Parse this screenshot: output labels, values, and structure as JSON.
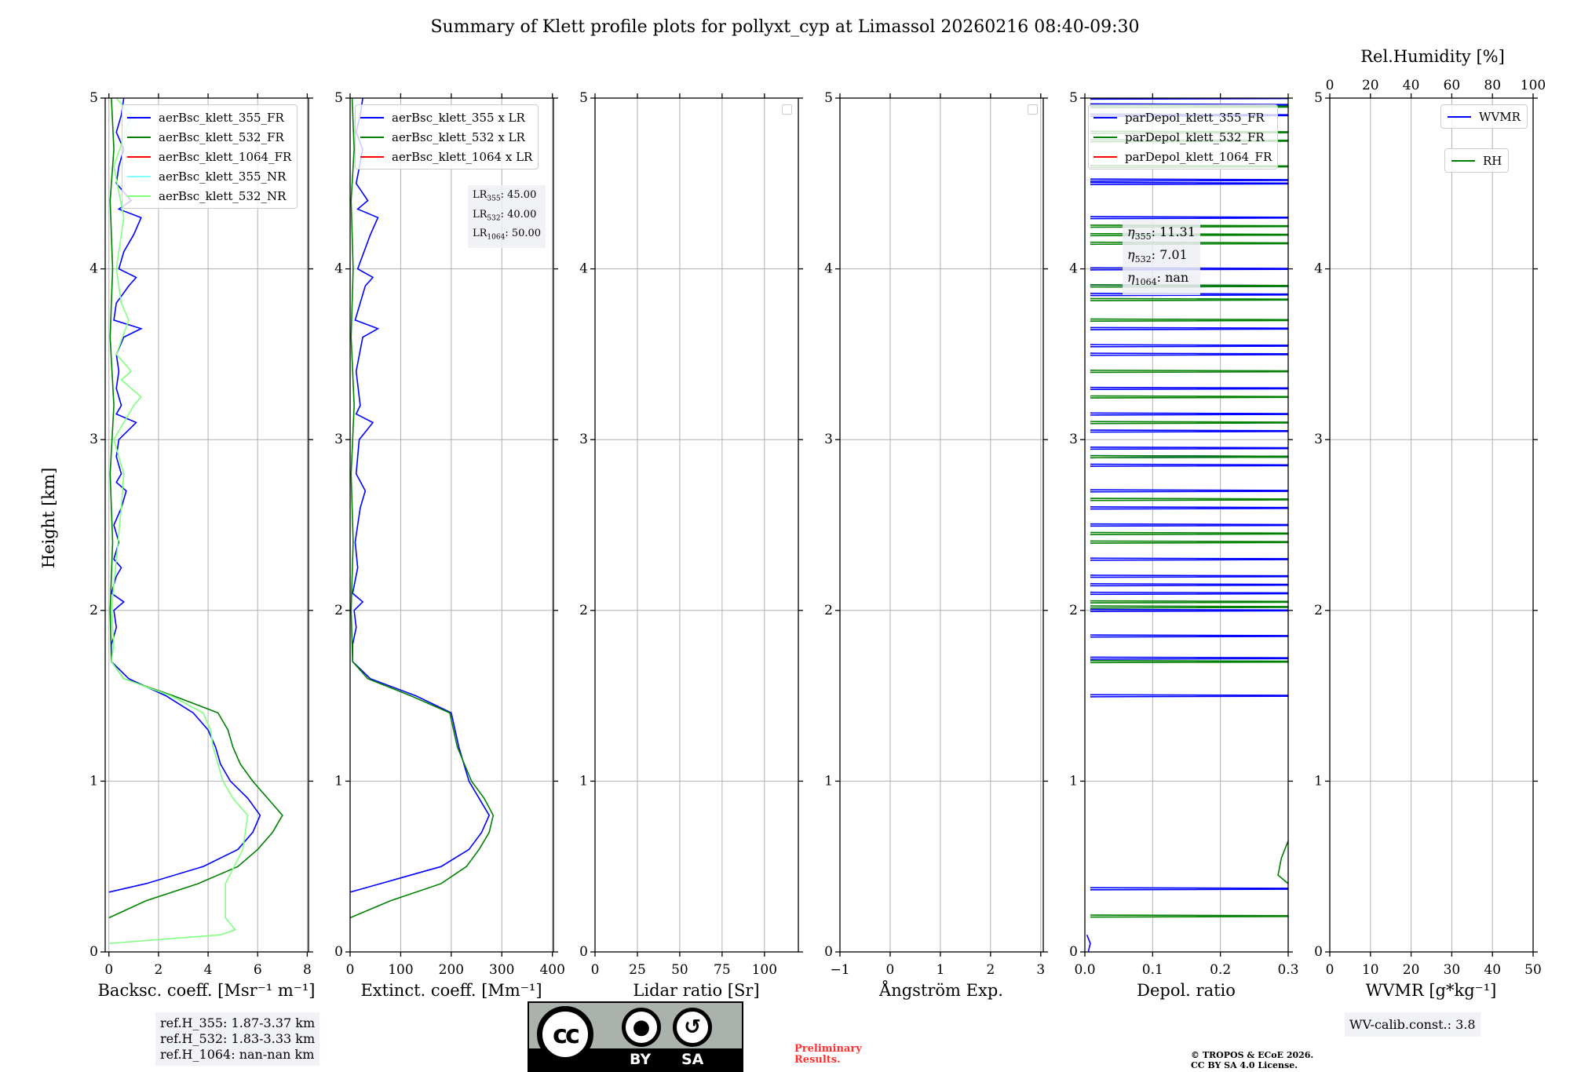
{
  "title": "Summary of Klett profile plots for pollyxt_cyp at Limassol 20260216 08:40-09:30",
  "ylabel": "Height [km]",
  "colors": {
    "c355": "#0000ff",
    "c532": "#008000",
    "c1064": "#ff0000",
    "c355nr": "#80ffff",
    "c532nr": "#80ff80"
  },
  "chart_data": [
    {
      "type": "line",
      "xlabel": "Backsc. coeff. [Msr⁻¹ m⁻¹]",
      "xlim": [
        -0.15,
        8.05
      ],
      "ylim": [
        0,
        5
      ],
      "xticks": [
        0,
        2,
        4,
        6,
        8
      ],
      "yticks": [
        0,
        1,
        2,
        3,
        4,
        5
      ],
      "grid": true,
      "legend_placement": "top-right",
      "legend": [
        "aerBsc_klett_355_FR",
        "aerBsc_klett_532_FR",
        "aerBsc_klett_1064_FR",
        "aerBsc_klett_355_NR",
        "aerBsc_klett_532_NR"
      ],
      "series": [
        {
          "name": "aerBsc_klett_355_FR",
          "color": "#0000ff",
          "points": [
            [
              0,
              0.35
            ],
            [
              1.5,
              0.4
            ],
            [
              3.8,
              0.5
            ],
            [
              5.2,
              0.6
            ],
            [
              5.8,
              0.7
            ],
            [
              6.1,
              0.8
            ],
            [
              5.6,
              0.9
            ],
            [
              4.9,
              1.0
            ],
            [
              4.5,
              1.1
            ],
            [
              4.3,
              1.2
            ],
            [
              4.0,
              1.3
            ],
            [
              3.4,
              1.4
            ],
            [
              2.3,
              1.5
            ],
            [
              0.8,
              1.6
            ],
            [
              0.1,
              1.7
            ],
            [
              0.1,
              1.8
            ],
            [
              0.3,
              1.9
            ],
            [
              0.2,
              2.0
            ],
            [
              0.6,
              2.05
            ],
            [
              0.1,
              2.1
            ],
            [
              0.3,
              2.2
            ],
            [
              0.5,
              2.25
            ],
            [
              0.2,
              2.3
            ],
            [
              0.4,
              2.4
            ],
            [
              0.2,
              2.5
            ],
            [
              0.5,
              2.6
            ],
            [
              0.7,
              2.7
            ],
            [
              0.3,
              2.75
            ],
            [
              0.5,
              2.8
            ],
            [
              0.3,
              2.9
            ],
            [
              0.4,
              3.0
            ],
            [
              1.1,
              3.1
            ],
            [
              0.3,
              3.15
            ],
            [
              0.5,
              3.2
            ],
            [
              0.3,
              3.3
            ],
            [
              0.4,
              3.4
            ],
            [
              0.3,
              3.5
            ],
            [
              0.6,
              3.6
            ],
            [
              1.3,
              3.65
            ],
            [
              0.2,
              3.7
            ],
            [
              0.3,
              3.8
            ],
            [
              0.8,
              3.9
            ],
            [
              1.1,
              3.95
            ],
            [
              0.4,
              4.0
            ],
            [
              0.6,
              4.1
            ],
            [
              1.0,
              4.2
            ],
            [
              1.3,
              4.3
            ],
            [
              0.4,
              4.35
            ],
            [
              0.9,
              4.4
            ],
            [
              0.3,
              4.5
            ],
            [
              0.4,
              4.6
            ],
            [
              0.6,
              4.7
            ],
            [
              0.3,
              4.8
            ],
            [
              0.5,
              4.9
            ],
            [
              0.6,
              5.0
            ]
          ]
        },
        {
          "name": "aerBsc_klett_532_FR",
          "color": "#008000",
          "points": [
            [
              0,
              0.2
            ],
            [
              1.5,
              0.3
            ],
            [
              3.6,
              0.4
            ],
            [
              5.2,
              0.5
            ],
            [
              6.0,
              0.6
            ],
            [
              6.6,
              0.7
            ],
            [
              7.0,
              0.8
            ],
            [
              6.4,
              0.9
            ],
            [
              5.8,
              1.0
            ],
            [
              5.3,
              1.1
            ],
            [
              5.0,
              1.2
            ],
            [
              4.8,
              1.3
            ],
            [
              4.4,
              1.4
            ],
            [
              2.6,
              1.5
            ],
            [
              0.6,
              1.6
            ],
            [
              0.1,
              1.7
            ],
            [
              0.05,
              2.0
            ],
            [
              0.15,
              2.4
            ],
            [
              0.05,
              2.8
            ],
            [
              0.2,
              3.2
            ],
            [
              0.05,
              3.6
            ],
            [
              0.15,
              4.0
            ],
            [
              0.05,
              4.4
            ],
            [
              0.2,
              4.7
            ],
            [
              0.1,
              5.0
            ]
          ]
        },
        {
          "name": "aerBsc_klett_1064_FR",
          "color": "#ff0000",
          "points": []
        },
        {
          "name": "aerBsc_klett_355_NR",
          "color": "#80ffff",
          "points": []
        },
        {
          "name": "aerBsc_klett_532_NR",
          "color": "#80ff80",
          "points": [
            [
              0,
              0.05
            ],
            [
              4.5,
              0.1
            ],
            [
              5.1,
              0.13
            ],
            [
              4.7,
              0.2
            ],
            [
              4.7,
              0.4
            ],
            [
              5.4,
              0.6
            ],
            [
              5.6,
              0.8
            ],
            [
              5.0,
              0.9
            ],
            [
              4.6,
              1.0
            ],
            [
              4.2,
              1.2
            ],
            [
              4.1,
              1.3
            ],
            [
              3.8,
              1.4
            ],
            [
              2.5,
              1.5
            ],
            [
              0.6,
              1.6
            ],
            [
              0.1,
              1.7
            ],
            [
              0.2,
              1.8
            ],
            [
              0.1,
              2.0
            ],
            [
              0.3,
              2.3
            ],
            [
              0.5,
              2.6
            ],
            [
              0.6,
              2.8
            ],
            [
              0.2,
              3.0
            ],
            [
              1.0,
              3.2
            ],
            [
              1.3,
              3.25
            ],
            [
              0.5,
              3.35
            ],
            [
              0.9,
              3.4
            ],
            [
              0.3,
              3.5
            ],
            [
              0.8,
              3.7
            ],
            [
              0.5,
              3.8
            ],
            [
              0.3,
              4.0
            ],
            [
              0.6,
              4.3
            ],
            [
              0.2,
              4.6
            ],
            [
              0.9,
              4.9
            ],
            [
              0.3,
              5.0
            ]
          ]
        }
      ],
      "annotation": {
        "lines": [
          "ref.H_355: 1.87-3.37 km",
          "ref.H_532: 1.83-3.33 km",
          "ref.H_1064: nan-nan km"
        ]
      }
    },
    {
      "type": "line",
      "xlabel": "Extinct. coeff. [Mm⁻¹]",
      "xlim": [
        0,
        402
      ],
      "ylim": [
        0,
        5
      ],
      "xticks": [
        0,
        100,
        200,
        300,
        400
      ],
      "yticks": [
        0,
        1,
        2,
        3,
        4,
        5
      ],
      "grid": true,
      "legend_placement": "top-right",
      "legend": [
        "aerBsc_klett_355 x LR",
        "aerBsc_klett_532 x LR",
        "aerBsc_klett_1064 x LR"
      ],
      "series": [
        {
          "name": "aerBsc_klett_355 x LR",
          "color": "#0000ff",
          "points": [
            [
              0,
              0.35
            ],
            [
              60,
              0.4
            ],
            [
              180,
              0.5
            ],
            [
              235,
              0.6
            ],
            [
              260,
              0.7
            ],
            [
              275,
              0.8
            ],
            [
              255,
              0.9
            ],
            [
              235,
              1.0
            ],
            [
              215,
              1.2
            ],
            [
              200,
              1.4
            ],
            [
              130,
              1.5
            ],
            [
              40,
              1.6
            ],
            [
              5,
              1.7
            ],
            [
              5,
              1.8
            ],
            [
              12,
              1.9
            ],
            [
              8,
              2.0
            ],
            [
              25,
              2.05
            ],
            [
              5,
              2.1
            ],
            [
              15,
              2.25
            ],
            [
              10,
              2.4
            ],
            [
              20,
              2.6
            ],
            [
              30,
              2.7
            ],
            [
              12,
              2.8
            ],
            [
              18,
              3.0
            ],
            [
              45,
              3.1
            ],
            [
              12,
              3.15
            ],
            [
              20,
              3.2
            ],
            [
              12,
              3.4
            ],
            [
              25,
              3.6
            ],
            [
              55,
              3.65
            ],
            [
              10,
              3.7
            ],
            [
              30,
              3.9
            ],
            [
              45,
              3.95
            ],
            [
              15,
              4.0
            ],
            [
              40,
              4.2
            ],
            [
              55,
              4.3
            ],
            [
              15,
              4.35
            ],
            [
              35,
              4.4
            ],
            [
              12,
              4.5
            ],
            [
              25,
              4.7
            ],
            [
              12,
              4.8
            ],
            [
              20,
              4.9
            ],
            [
              25,
              5.0
            ]
          ]
        },
        {
          "name": "aerBsc_klett_532 x LR",
          "color": "#008000",
          "points": [
            [
              0,
              0.2
            ],
            [
              80,
              0.3
            ],
            [
              180,
              0.4
            ],
            [
              230,
              0.5
            ],
            [
              255,
              0.6
            ],
            [
              275,
              0.7
            ],
            [
              283,
              0.8
            ],
            [
              265,
              0.9
            ],
            [
              240,
              1.0
            ],
            [
              212,
              1.2
            ],
            [
              197,
              1.4
            ],
            [
              120,
              1.5
            ],
            [
              35,
              1.6
            ],
            [
              5,
              1.7
            ],
            [
              2,
              2.0
            ],
            [
              6,
              2.4
            ],
            [
              2,
              2.8
            ],
            [
              8,
              3.2
            ],
            [
              2,
              3.6
            ],
            [
              6,
              4.0
            ],
            [
              2,
              4.4
            ],
            [
              8,
              4.7
            ],
            [
              4,
              5.0
            ]
          ]
        },
        {
          "name": "aerBsc_klett_1064 x LR",
          "color": "#ff0000",
          "points": []
        }
      ],
      "annotation": {
        "lr355": "45.00",
        "lr532": "40.00",
        "lr1064": "50.00",
        "label": "LR",
        "sub355": "355",
        "sub532": "532",
        "sub1064": "1064"
      }
    },
    {
      "type": "line",
      "xlabel": "Lidar ratio [Sr]",
      "xlim": [
        0,
        120
      ],
      "ylim": [
        0,
        5
      ],
      "xticks": [
        0,
        25,
        50,
        75,
        100
      ],
      "yticks": [
        0,
        1,
        2,
        3,
        4,
        5
      ],
      "grid": true,
      "series": []
    },
    {
      "type": "line",
      "xlabel": "Ångström Exp.",
      "xlim": [
        -1,
        3.05
      ],
      "ylim": [
        0,
        5
      ],
      "xticks": [
        -1,
        0,
        1,
        2,
        3
      ],
      "xticklabels": [
        "−1",
        "0",
        "1",
        "2",
        "3"
      ],
      "yticks": [
        0,
        1,
        2,
        3,
        4,
        5
      ],
      "grid": true,
      "series": []
    },
    {
      "type": "line",
      "xlabel": "Depol. ratio",
      "xlim": [
        0,
        0.3
      ],
      "ylim": [
        0,
        5
      ],
      "xticks": [
        0,
        0.1,
        0.2,
        0.3
      ],
      "xticklabels": [
        "0.0",
        "0.1",
        "0.2",
        "0.3"
      ],
      "yticks": [
        0,
        1,
        2,
        3,
        4,
        5
      ],
      "grid": true,
      "legend_placement": "top-left",
      "legend": [
        "parDepol_klett_355_FR",
        "parDepol_klett_532_FR",
        "parDepol_klett_1064_FR"
      ],
      "series": [
        {
          "name": "parDepol_klett_355_FR",
          "color": "#0000ff",
          "points": [
            [
              0.005,
              0
            ],
            [
              0.008,
              0.05
            ],
            [
              0.003,
              0.1
            ]
          ],
          "spikes": [
            0.37,
            1.5,
            1.72,
            1.85,
            2.0,
            2.1,
            2.15,
            2.2,
            2.3,
            2.5,
            2.6,
            2.7,
            2.85,
            2.9,
            2.95,
            3.05,
            3.15,
            3.3,
            3.5,
            3.55,
            3.65,
            3.85,
            3.9,
            4.0,
            4.3,
            4.5,
            4.52,
            4.9,
            4.96,
            5.0
          ]
        },
        {
          "name": "parDepol_klett_532_FR",
          "color": "#008000",
          "points": [
            [
              0.3,
              0.4
            ],
            [
              0.285,
              0.45
            ],
            [
              0.29,
              0.55
            ],
            [
              0.3,
              0.65
            ]
          ],
          "spikes": [
            0.21,
            1.7,
            2.02,
            2.05,
            2.4,
            2.45,
            2.65,
            2.9,
            3.1,
            3.25,
            3.4,
            3.7,
            3.82,
            3.9,
            4.15,
            4.2,
            4.25,
            4.6,
            4.75,
            4.8,
            4.95
          ]
        },
        {
          "name": "parDepol_klett_1064_FR",
          "color": "#ff0000",
          "points": []
        }
      ],
      "annotation": {
        "label": "η",
        "sub355": "355",
        "sub532": "532",
        "sub1064": "1064",
        "eta355": "11.31",
        "eta532": "7.01",
        "eta1064": "nan"
      }
    },
    {
      "type": "line",
      "xlabel": "WVMR [g*kg⁻¹]",
      "xlim": [
        0,
        50
      ],
      "ylim": [
        0,
        5
      ],
      "xticks": [
        0,
        10,
        20,
        30,
        40,
        50
      ],
      "yticks": [
        0,
        1,
        2,
        3,
        4,
        5
      ],
      "grid": true,
      "top_axis": {
        "label": "Rel.Humidity [%]",
        "xlim": [
          0,
          100
        ],
        "xticks": [
          0,
          20,
          40,
          60,
          80,
          100
        ]
      },
      "legend": [
        "WVMR",
        "RH"
      ],
      "series": [
        {
          "name": "WVMR",
          "color": "#0000ff",
          "points": []
        },
        {
          "name": "RH",
          "color": "#008000",
          "points": []
        }
      ],
      "annotation": {
        "text": "WV-calib.const.: 3.8"
      }
    }
  ],
  "footer": {
    "prelim_1": "Preliminary",
    "prelim_2": "Results.",
    "copyright_1": "© TROPOS & ECoE 2026.",
    "copyright_2": "CC BY SA 4.0 License.",
    "logo": {
      "cc": "cc",
      "by": "BY",
      "sa": "SA"
    }
  }
}
